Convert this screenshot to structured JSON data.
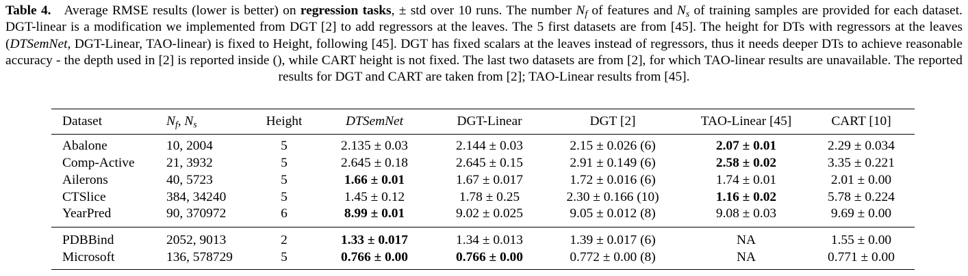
{
  "caption": {
    "label": "Table 4.",
    "parts": [
      "Average RMSE results (lower is better) on ",
      "regression tasks",
      ", ± std over 10 runs. The number ",
      "N",
      "f",
      " of features and ",
      "N",
      "s",
      " of training samples are provided for each dataset. DGT-linear is a modification we implemented from DGT [2] to add regressors at the leaves. The 5 first datasets are from [45]. The height for DTs with regressors at the leaves (",
      "DTSemNet",
      ", DGT-Linear, TAO-linear) is fixed to Height, following [45]. DGT has fixed scalars at the leaves instead of regressors, thus it needs deeper DTs to achieve reasonable accuracy - the depth used in [2] is reported inside (), while CART height is not fixed. The last two datasets are from [2], for which TAO-linear results are unavailable. The reported results for DGT and CART are taken from [2]; TAO-Linear results from [45]."
    ]
  },
  "table": {
    "header": [
      "Dataset",
      {
        "var1": "N",
        "sub1": "f",
        "sep": ", ",
        "var2": "N",
        "sub2": "s"
      },
      "Height",
      {
        "text": "DTSemNet",
        "italic": true
      },
      "DGT-Linear",
      "DGT [2]",
      "TAO-Linear [45]",
      "CART [10]"
    ],
    "groups": [
      [
        [
          "Abalone",
          "10, 2004",
          "5",
          "2.135 ± 0.03",
          "2.144 ± 0.03",
          "2.15 ± 0.026 (6)",
          {
            "text": "2.07 ± 0.01",
            "bold": true
          },
          "2.29 ± 0.034"
        ],
        [
          "Comp-Active",
          "21, 3932",
          "5",
          "2.645 ± 0.18",
          "2.645 ± 0.15",
          "2.91 ± 0.149 (6)",
          {
            "text": "2.58 ± 0.02",
            "bold": true
          },
          "3.35 ± 0.221"
        ],
        [
          "Ailerons",
          "40, 5723",
          "5",
          {
            "text": "1.66 ± 0.01",
            "bold": true
          },
          "1.67 ± 0.017",
          "1.72 ± 0.016 (6)",
          "1.74 ± 0.01",
          "2.01 ± 0.00"
        ],
        [
          "CTSlice",
          "384, 34240",
          "5",
          "1.45 ± 0.12",
          "1.78 ± 0.25",
          "2.30 ± 0.166 (10)",
          {
            "text": "1.16 ± 0.02",
            "bold": true
          },
          "5.78 ± 0.224"
        ],
        [
          "YearPred",
          "90, 370972",
          "6",
          {
            "text": "8.99 ± 0.01",
            "bold": true
          },
          "9.02 ± 0.025",
          "9.05 ± 0.012 (8)",
          "9.08 ± 0.03",
          "9.69 ± 0.00"
        ]
      ],
      [
        [
          "PDBBind",
          "2052, 9013",
          "2",
          {
            "text": "1.33 ± 0.017",
            "bold": true
          },
          "1.34 ± 0.013",
          "1.39 ± 0.017 (6)",
          "NA",
          "1.55 ± 0.00"
        ],
        [
          "Microsoft",
          "136, 578729",
          "5",
          {
            "text": "0.766 ± 0.00",
            "bold": true
          },
          {
            "text": "0.766 ± 0.00",
            "bold": true
          },
          "0.772 ± 0.00 (8)",
          "NA",
          "0.771 ± 0.00"
        ]
      ]
    ]
  }
}
